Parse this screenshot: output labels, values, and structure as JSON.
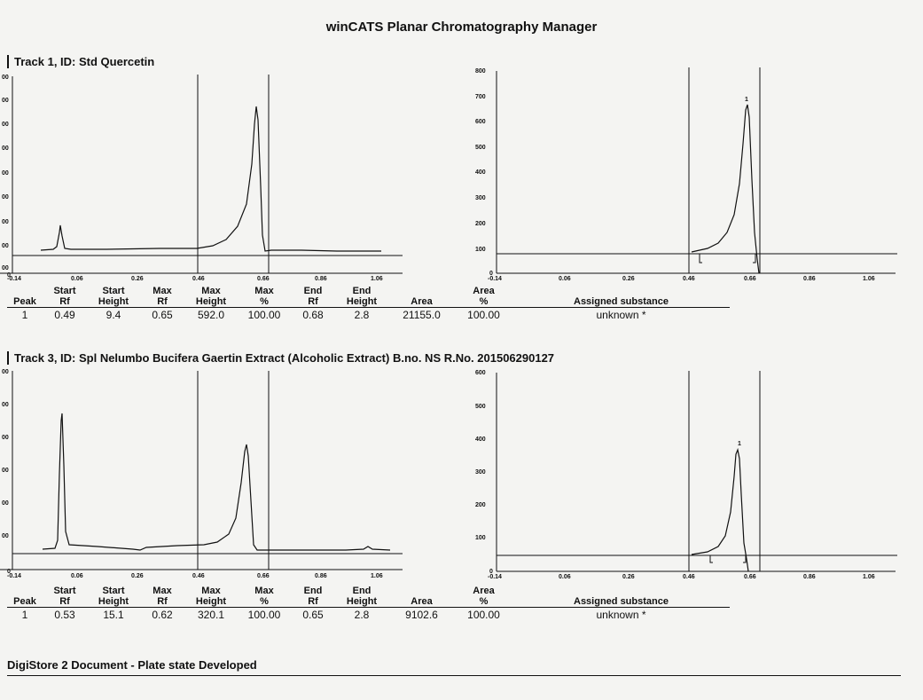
{
  "header": {
    "title": "winCATS Planar Chromatography Manager"
  },
  "tracks": [
    {
      "title": "Track 1, ID: Std Quercetin",
      "left_chart": {
        "y_ticks": [
          "00",
          "00",
          "00",
          "00",
          "00",
          "00",
          "00",
          "00",
          "00",
          "0"
        ],
        "x_ticks": [
          "-0.14",
          "0.06",
          "0.26",
          "0.46",
          "0.66",
          "0.86",
          "1.06"
        ]
      },
      "right_chart": {
        "y_ticks": [
          "800",
          "700",
          "600",
          "500",
          "400",
          "300",
          "200",
          "100",
          "0"
        ],
        "x_ticks": [
          "-0.14",
          "0.06",
          "0.26",
          "0.46",
          "0.66",
          "0.86",
          "1.06"
        ],
        "peak_label": "1"
      },
      "columns": [
        {
          "l1": "",
          "l2": "Peak"
        },
        {
          "l1": "Start",
          "l2": "Rf"
        },
        {
          "l1": "Start",
          "l2": "Height"
        },
        {
          "l1": "Max",
          "l2": "Rf"
        },
        {
          "l1": "Max",
          "l2": "Height"
        },
        {
          "l1": "Max",
          "l2": "%"
        },
        {
          "l1": "End",
          "l2": "Rf"
        },
        {
          "l1": "End",
          "l2": "Height"
        },
        {
          "l1": "",
          "l2": "Area"
        },
        {
          "l1": "Area",
          "l2": "%"
        },
        {
          "l1": "",
          "l2": "Assigned substance"
        }
      ],
      "rows": [
        [
          "1",
          "0.49",
          "9.4",
          "0.65",
          "592.0",
          "100.00",
          "0.68",
          "2.8",
          "21155.0",
          "100.00",
          "unknown *"
        ]
      ]
    },
    {
      "title": "Track 3, ID: Spl Nelumbo Bucifera Gaertin Extract (Alcoholic Extract) B.no. NS R.No. 201506290127",
      "left_chart": {
        "y_ticks": [
          "00",
          "00",
          "00",
          "00",
          "00",
          "00",
          "0"
        ],
        "x_ticks": [
          "-0.14",
          "0.06",
          "0.26",
          "0.46",
          "0.66",
          "0.86",
          "1.06"
        ]
      },
      "right_chart": {
        "y_ticks": [
          "600",
          "500",
          "400",
          "300",
          "200",
          "100",
          "0"
        ],
        "x_ticks": [
          "-0.14",
          "0.06",
          "0.26",
          "0.46",
          "0.66",
          "0.86",
          "1.06"
        ],
        "peak_label": "1"
      },
      "columns": [
        {
          "l1": "",
          "l2": "Peak"
        },
        {
          "l1": "Start",
          "l2": "Rf"
        },
        {
          "l1": "Start",
          "l2": "Height"
        },
        {
          "l1": "Max",
          "l2": "Rf"
        },
        {
          "l1": "Max",
          "l2": "Height"
        },
        {
          "l1": "Max",
          "l2": "%"
        },
        {
          "l1": "End",
          "l2": "Rf"
        },
        {
          "l1": "End",
          "l2": "Height"
        },
        {
          "l1": "",
          "l2": "Area"
        },
        {
          "l1": "Area",
          "l2": "%"
        },
        {
          "l1": "",
          "l2": "Assigned substance"
        }
      ],
      "rows": [
        [
          "1",
          "0.53",
          "15.1",
          "0.62",
          "320.1",
          "100.00",
          "0.65",
          "2.8",
          "9102.6",
          "100.00",
          "unknown *"
        ]
      ]
    }
  ],
  "footer": {
    "text": "DigiStore 2 Document - Plate state Developed"
  }
}
